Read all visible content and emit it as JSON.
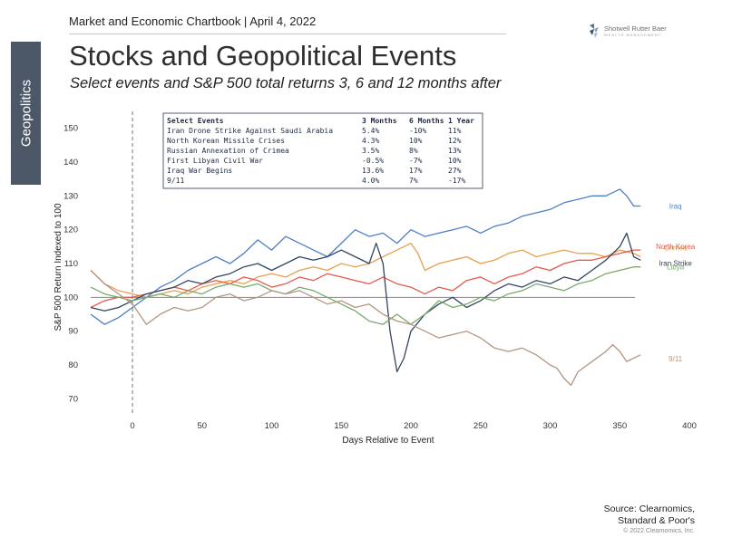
{
  "header": {
    "text": "Market and Economic Chartbook | April 4, 2022",
    "logo_name": "Shotwell Rutter Baer",
    "logo_sub": "WEALTH MANAGEMENT"
  },
  "side_tab": {
    "label": "Geopolitics"
  },
  "title": "Stocks and Geopolitical Events",
  "subtitle": "Select events and S&P 500 total returns 3, 6 and 12 months after",
  "source": {
    "line1": "Source: Clearnomics,",
    "line2": "Standard & Poor's",
    "copyright": "© 2022 Clearnomics, Inc."
  },
  "colors": {
    "tab": "#4c5768",
    "iraq": "#4d7fc4",
    "crimea": "#e8a04e",
    "north_korea": "#e35a4e",
    "iran": "#33465e",
    "libya": "#7aa96b",
    "nine_eleven": "#b39682",
    "table_border": "#2a3550"
  },
  "table": {
    "headers": [
      "Select Events",
      "3 Months",
      "6 Months",
      "1 Year"
    ],
    "rows": [
      [
        "Iran Drone Strike Against Saudi Arabia",
        "5.4%",
        "-10%",
        "11%"
      ],
      [
        "North Korean Missile Crises",
        "4.3%",
        "10%",
        "12%"
      ],
      [
        "Russian Annexation of Crimea",
        "3.5%",
        "8%",
        "13%"
      ],
      [
        "First Libyan Civil War",
        "-0.5%",
        "-7%",
        "10%"
      ],
      [
        "Iraq War Begins",
        "13.6%",
        "17%",
        "27%"
      ],
      [
        "9/11",
        "4.0%",
        "7%",
        "-17%"
      ]
    ]
  },
  "chart_data": {
    "type": "line",
    "xlabel": "Days Relative to Event",
    "ylabel": "S&P 500 Return Indexed to 100",
    "xlim": [
      -30,
      400
    ],
    "ylim": [
      65,
      155
    ],
    "x_ticks": [
      0,
      50,
      100,
      150,
      200,
      250,
      300,
      350,
      400
    ],
    "y_ticks": [
      70,
      80,
      90,
      100,
      110,
      120,
      130,
      140,
      150
    ],
    "reference_line": {
      "y": 100
    },
    "event_line": {
      "x": 0
    },
    "series": [
      {
        "name": "Iraq",
        "color": "#4d7fc4",
        "points": [
          [
            -30,
            95
          ],
          [
            -20,
            92
          ],
          [
            -10,
            94
          ],
          [
            0,
            97
          ],
          [
            10,
            100
          ],
          [
            20,
            103
          ],
          [
            30,
            105
          ],
          [
            40,
            108
          ],
          [
            50,
            110
          ],
          [
            60,
            112
          ],
          [
            70,
            110
          ],
          [
            80,
            113
          ],
          [
            90,
            117
          ],
          [
            100,
            114
          ],
          [
            110,
            118
          ],
          [
            120,
            116
          ],
          [
            130,
            114
          ],
          [
            140,
            112
          ],
          [
            150,
            116
          ],
          [
            160,
            120
          ],
          [
            170,
            118
          ],
          [
            180,
            119
          ],
          [
            190,
            116
          ],
          [
            200,
            120
          ],
          [
            210,
            118
          ],
          [
            220,
            119
          ],
          [
            230,
            120
          ],
          [
            240,
            121
          ],
          [
            250,
            119
          ],
          [
            260,
            121
          ],
          [
            270,
            122
          ],
          [
            280,
            124
          ],
          [
            290,
            125
          ],
          [
            300,
            126
          ],
          [
            310,
            128
          ],
          [
            320,
            129
          ],
          [
            330,
            130
          ],
          [
            340,
            130
          ],
          [
            350,
            132
          ],
          [
            355,
            130
          ],
          [
            360,
            127
          ],
          [
            365,
            127
          ]
        ]
      },
      {
        "name": "Crimea",
        "color": "#e8a04e",
        "points": [
          [
            -30,
            108
          ],
          [
            -20,
            104
          ],
          [
            -10,
            102
          ],
          [
            0,
            101
          ],
          [
            10,
            100
          ],
          [
            20,
            101
          ],
          [
            30,
            102
          ],
          [
            40,
            101
          ],
          [
            50,
            103
          ],
          [
            60,
            104
          ],
          [
            70,
            105
          ],
          [
            80,
            104
          ],
          [
            90,
            106
          ],
          [
            100,
            107
          ],
          [
            110,
            106
          ],
          [
            120,
            108
          ],
          [
            130,
            109
          ],
          [
            140,
            108
          ],
          [
            150,
            110
          ],
          [
            160,
            109
          ],
          [
            170,
            110
          ],
          [
            180,
            112
          ],
          [
            190,
            114
          ],
          [
            200,
            116
          ],
          [
            205,
            113
          ],
          [
            210,
            108
          ],
          [
            220,
            110
          ],
          [
            230,
            111
          ],
          [
            240,
            112
          ],
          [
            250,
            110
          ],
          [
            260,
            111
          ],
          [
            270,
            113
          ],
          [
            280,
            114
          ],
          [
            290,
            112
          ],
          [
            300,
            113
          ],
          [
            310,
            114
          ],
          [
            320,
            113
          ],
          [
            330,
            113
          ],
          [
            340,
            112
          ],
          [
            350,
            114
          ],
          [
            360,
            113
          ],
          [
            365,
            112
          ]
        ]
      },
      {
        "name": "North Korea",
        "color": "#e35a4e",
        "points": [
          [
            -30,
            97
          ],
          [
            -20,
            99
          ],
          [
            -10,
            100
          ],
          [
            0,
            100
          ],
          [
            10,
            101
          ],
          [
            20,
            102
          ],
          [
            30,
            103
          ],
          [
            40,
            102
          ],
          [
            50,
            104
          ],
          [
            60,
            105
          ],
          [
            70,
            104
          ],
          [
            80,
            106
          ],
          [
            90,
            105
          ],
          [
            100,
            103
          ],
          [
            110,
            104
          ],
          [
            120,
            106
          ],
          [
            130,
            105
          ],
          [
            140,
            107
          ],
          [
            150,
            106
          ],
          [
            160,
            105
          ],
          [
            170,
            104
          ],
          [
            180,
            106
          ],
          [
            190,
            104
          ],
          [
            200,
            103
          ],
          [
            210,
            101
          ],
          [
            220,
            103
          ],
          [
            230,
            102
          ],
          [
            240,
            105
          ],
          [
            250,
            106
          ],
          [
            260,
            104
          ],
          [
            270,
            106
          ],
          [
            280,
            107
          ],
          [
            290,
            109
          ],
          [
            300,
            108
          ],
          [
            310,
            110
          ],
          [
            320,
            111
          ],
          [
            330,
            111
          ],
          [
            340,
            112
          ],
          [
            350,
            113
          ],
          [
            360,
            114
          ],
          [
            365,
            114
          ]
        ]
      },
      {
        "name": "Iran Strike",
        "color": "#33465e",
        "points": [
          [
            -30,
            97
          ],
          [
            -20,
            96
          ],
          [
            -10,
            97
          ],
          [
            0,
            99
          ],
          [
            10,
            101
          ],
          [
            20,
            102
          ],
          [
            30,
            103
          ],
          [
            40,
            105
          ],
          [
            50,
            104
          ],
          [
            60,
            106
          ],
          [
            70,
            107
          ],
          [
            80,
            109
          ],
          [
            90,
            110
          ],
          [
            100,
            108
          ],
          [
            110,
            110
          ],
          [
            120,
            112
          ],
          [
            130,
            111
          ],
          [
            140,
            112
          ],
          [
            150,
            114
          ],
          [
            160,
            112
          ],
          [
            170,
            110
          ],
          [
            175,
            116
          ],
          [
            180,
            110
          ],
          [
            185,
            90
          ],
          [
            190,
            78
          ],
          [
            195,
            82
          ],
          [
            200,
            90
          ],
          [
            210,
            95
          ],
          [
            220,
            98
          ],
          [
            230,
            100
          ],
          [
            240,
            97
          ],
          [
            250,
            99
          ],
          [
            260,
            102
          ],
          [
            270,
            104
          ],
          [
            280,
            103
          ],
          [
            290,
            105
          ],
          [
            300,
            104
          ],
          [
            310,
            106
          ],
          [
            320,
            105
          ],
          [
            330,
            108
          ],
          [
            340,
            111
          ],
          [
            350,
            115
          ],
          [
            355,
            119
          ],
          [
            360,
            112
          ],
          [
            365,
            111
          ]
        ]
      },
      {
        "name": "Libya",
        "color": "#7aa96b",
        "points": [
          [
            -30,
            103
          ],
          [
            -20,
            101
          ],
          [
            -10,
            100
          ],
          [
            0,
            99
          ],
          [
            10,
            100
          ],
          [
            20,
            101
          ],
          [
            30,
            100
          ],
          [
            40,
            102
          ],
          [
            50,
            101
          ],
          [
            60,
            103
          ],
          [
            70,
            104
          ],
          [
            80,
            103
          ],
          [
            90,
            104
          ],
          [
            100,
            102
          ],
          [
            110,
            101
          ],
          [
            120,
            103
          ],
          [
            130,
            102
          ],
          [
            140,
            100
          ],
          [
            150,
            98
          ],
          [
            160,
            96
          ],
          [
            170,
            93
          ],
          [
            180,
            92
          ],
          [
            190,
            95
          ],
          [
            200,
            92
          ],
          [
            210,
            95
          ],
          [
            220,
            99
          ],
          [
            230,
            97
          ],
          [
            240,
            98
          ],
          [
            250,
            100
          ],
          [
            260,
            99
          ],
          [
            270,
            101
          ],
          [
            280,
            102
          ],
          [
            290,
            104
          ],
          [
            300,
            103
          ],
          [
            310,
            102
          ],
          [
            320,
            104
          ],
          [
            330,
            105
          ],
          [
            340,
            107
          ],
          [
            350,
            108
          ],
          [
            360,
            109
          ],
          [
            365,
            109
          ]
        ]
      },
      {
        "name": "9/11",
        "color": "#b39682",
        "points": [
          [
            -30,
            108
          ],
          [
            -20,
            104
          ],
          [
            -10,
            101
          ],
          [
            0,
            98
          ],
          [
            10,
            92
          ],
          [
            20,
            95
          ],
          [
            30,
            97
          ],
          [
            40,
            96
          ],
          [
            50,
            97
          ],
          [
            60,
            100
          ],
          [
            70,
            101
          ],
          [
            80,
            99
          ],
          [
            90,
            100
          ],
          [
            100,
            102
          ],
          [
            110,
            101
          ],
          [
            120,
            102
          ],
          [
            130,
            100
          ],
          [
            140,
            98
          ],
          [
            150,
            99
          ],
          [
            160,
            97
          ],
          [
            170,
            98
          ],
          [
            180,
            95
          ],
          [
            190,
            93
          ],
          [
            200,
            92
          ],
          [
            210,
            90
          ],
          [
            220,
            88
          ],
          [
            230,
            89
          ],
          [
            240,
            90
          ],
          [
            250,
            88
          ],
          [
            260,
            85
          ],
          [
            270,
            84
          ],
          [
            280,
            85
          ],
          [
            290,
            83
          ],
          [
            300,
            80
          ],
          [
            305,
            79
          ],
          [
            310,
            76
          ],
          [
            315,
            74
          ],
          [
            320,
            78
          ],
          [
            330,
            81
          ],
          [
            340,
            84
          ],
          [
            345,
            86
          ],
          [
            350,
            84
          ],
          [
            355,
            81
          ],
          [
            360,
            82
          ],
          [
            365,
            83
          ]
        ]
      }
    ],
    "series_labels": [
      {
        "text": "Iraq",
        "series": "Iraq"
      },
      {
        "text": "Crimea",
        "series": "Crimea"
      },
      {
        "text": "North Korea",
        "series": "North Korea"
      },
      {
        "text": "Iran Strike",
        "series": "Iran Strike"
      },
      {
        "text": "Libya",
        "series": "Libya"
      },
      {
        "text": "9/11",
        "series": "9/11"
      }
    ]
  }
}
